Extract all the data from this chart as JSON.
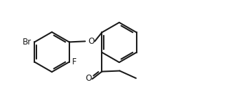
{
  "bg_color": "#ffffff",
  "line_color": "#1a1a1a",
  "line_width": 1.5,
  "label_Br": "Br",
  "label_F": "F",
  "label_O_ether": "O",
  "label_O_ketone": "O",
  "font_size": 8.5,
  "fig_width": 3.29,
  "fig_height": 1.52,
  "dpi": 100,
  "xlim": [
    0.0,
    3.29
  ],
  "ylim": [
    0.0,
    1.52
  ]
}
